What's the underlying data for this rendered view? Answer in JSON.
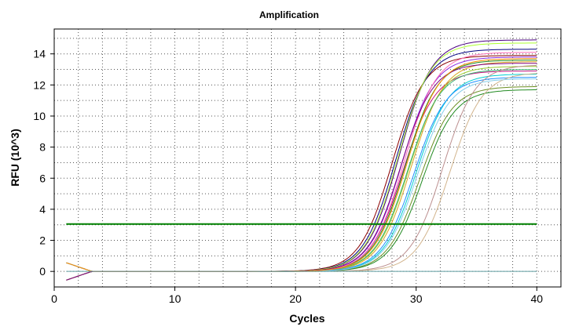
{
  "chart_data": {
    "type": "line",
    "title": "Amplification",
    "xlabel": "Cycles",
    "ylabel": "RFU (10^3)",
    "xlim": [
      0,
      42
    ],
    "ylim": [
      -1,
      15.6
    ],
    "xticks": [
      0,
      10,
      20,
      30,
      40
    ],
    "yticks": [
      0,
      2,
      4,
      6,
      8,
      10,
      12,
      14
    ],
    "grid": "dotted",
    "x_start": 1,
    "x_end": 40,
    "threshold": {
      "value": 3.05,
      "color": "#008000"
    },
    "series": [
      {
        "color": "#8B0000",
        "midpoint": 28.0,
        "plateau": 13.9
      },
      {
        "color": "#000080",
        "midpoint": 28.3,
        "plateau": 14.3
      },
      {
        "color": "#4B0082",
        "midpoint": 28.6,
        "plateau": 14.9
      },
      {
        "color": "#C71585",
        "midpoint": 28.9,
        "plateau": 12.9
      },
      {
        "color": "#228B22",
        "midpoint": 29.1,
        "plateau": 13.6
      },
      {
        "color": "#9ACD32",
        "midpoint": 29.4,
        "plateau": 13.2
      },
      {
        "color": "#DAA520",
        "midpoint": 29.6,
        "plateau": 13.5
      },
      {
        "color": "#00CED1",
        "midpoint": 30.0,
        "plateau": 12.7
      },
      {
        "color": "#8A2BE2",
        "midpoint": 28.8,
        "plateau": 13.8
      },
      {
        "color": "#3CB371",
        "midpoint": 29.3,
        "plateau": 13.0
      },
      {
        "color": "#FF69B4",
        "midpoint": 29.0,
        "plateau": 14.1
      },
      {
        "color": "#1E90FF",
        "midpoint": 29.8,
        "plateau": 12.5
      },
      {
        "color": "#ADFF2F",
        "midpoint": 28.5,
        "plateau": 14.7
      },
      {
        "color": "#6B8E23",
        "midpoint": 30.3,
        "plateau": 11.9
      },
      {
        "color": "#228B22",
        "midpoint": 30.5,
        "plateau": 11.7
      },
      {
        "color": "#BC8F8F",
        "midpoint": 32.2,
        "plateau": 13.3
      },
      {
        "color": "#D2B48C",
        "midpoint": 32.8,
        "plateau": 12.8
      },
      {
        "color": "#87CEEB",
        "midpoint": 30.1,
        "plateau": 12.4
      },
      {
        "color": "#800080",
        "midpoint": 28.7,
        "plateau": 13.4
      },
      {
        "color": "#FF8C00",
        "midpoint": 29.2,
        "plateau": 13.7
      }
    ]
  }
}
